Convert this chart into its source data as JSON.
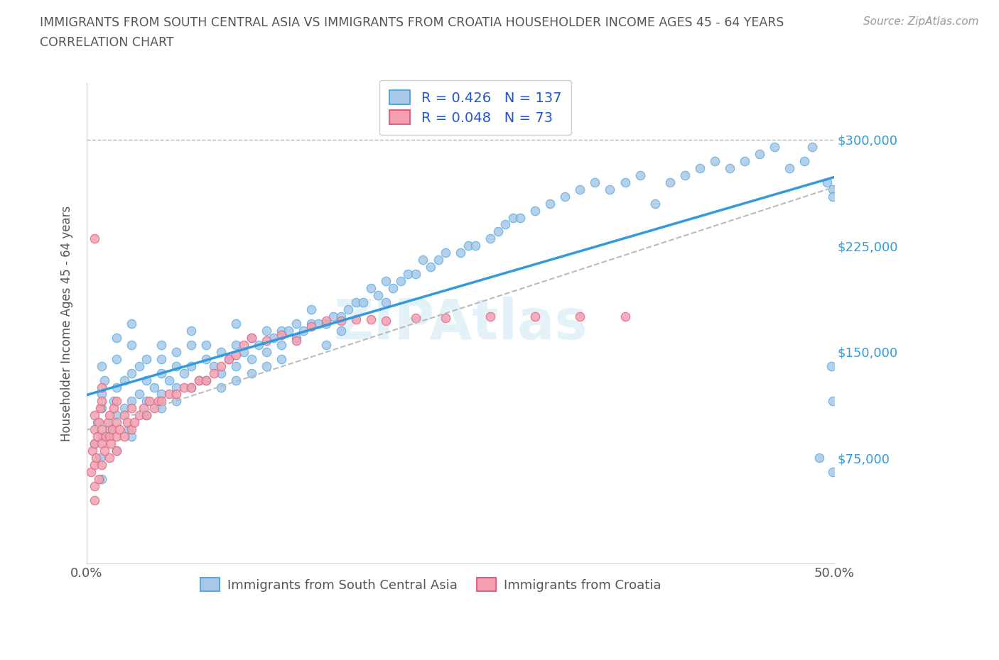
{
  "title_line1": "IMMIGRANTS FROM SOUTH CENTRAL ASIA VS IMMIGRANTS FROM CROATIA HOUSEHOLDER INCOME AGES 45 - 64 YEARS",
  "title_line2": "CORRELATION CHART",
  "source_text": "Source: ZipAtlas.com",
  "ylabel": "Householder Income Ages 45 - 64 years",
  "xlim": [
    0.0,
    0.5
  ],
  "ylim": [
    0,
    340000
  ],
  "ytick_values": [
    75000,
    150000,
    225000,
    300000
  ],
  "ytick_labels": [
    "$75,000",
    "$150,000",
    "$225,000",
    "$300,000"
  ],
  "r_asia": 0.426,
  "n_asia": 137,
  "r_croatia": 0.048,
  "n_croatia": 73,
  "color_asia": "#a8c8e8",
  "color_asia_edge": "#5aaadd",
  "color_croatia": "#f4a0b0",
  "color_croatia_edge": "#e06080",
  "color_asia_line": "#3399dd",
  "color_croatia_line": "#bbbbbb",
  "legend_label_asia": "Immigrants from South Central Asia",
  "legend_label_croatia": "Immigrants from Croatia",
  "watermark": "ZIPAtlas",
  "scatter_asia_x": [
    0.005,
    0.007,
    0.009,
    0.01,
    0.01,
    0.01,
    0.01,
    0.01,
    0.012,
    0.015,
    0.018,
    0.02,
    0.02,
    0.02,
    0.02,
    0.02,
    0.025,
    0.025,
    0.028,
    0.03,
    0.03,
    0.03,
    0.03,
    0.03,
    0.035,
    0.035,
    0.04,
    0.04,
    0.04,
    0.04,
    0.045,
    0.05,
    0.05,
    0.05,
    0.05,
    0.05,
    0.055,
    0.06,
    0.06,
    0.06,
    0.06,
    0.065,
    0.07,
    0.07,
    0.07,
    0.07,
    0.075,
    0.08,
    0.08,
    0.08,
    0.085,
    0.09,
    0.09,
    0.09,
    0.095,
    0.1,
    0.1,
    0.1,
    0.1,
    0.105,
    0.11,
    0.11,
    0.11,
    0.115,
    0.12,
    0.12,
    0.12,
    0.125,
    0.13,
    0.13,
    0.13,
    0.135,
    0.14,
    0.14,
    0.145,
    0.15,
    0.15,
    0.155,
    0.16,
    0.16,
    0.165,
    0.17,
    0.17,
    0.175,
    0.18,
    0.185,
    0.19,
    0.195,
    0.2,
    0.2,
    0.205,
    0.21,
    0.215,
    0.22,
    0.225,
    0.23,
    0.235,
    0.24,
    0.25,
    0.255,
    0.26,
    0.27,
    0.275,
    0.28,
    0.285,
    0.29,
    0.3,
    0.31,
    0.32,
    0.33,
    0.34,
    0.35,
    0.36,
    0.37,
    0.38,
    0.39,
    0.4,
    0.41,
    0.42,
    0.43,
    0.44,
    0.45,
    0.46,
    0.47,
    0.48,
    0.485,
    0.49,
    0.495,
    0.498,
    0.499,
    0.499,
    0.499,
    0.499
  ],
  "scatter_asia_y": [
    85000,
    100000,
    75000,
    110000,
    120000,
    140000,
    90000,
    60000,
    130000,
    95000,
    115000,
    105000,
    125000,
    145000,
    80000,
    160000,
    110000,
    130000,
    95000,
    115000,
    135000,
    155000,
    90000,
    170000,
    120000,
    140000,
    115000,
    130000,
    145000,
    105000,
    125000,
    120000,
    135000,
    145000,
    110000,
    155000,
    130000,
    125000,
    140000,
    150000,
    115000,
    135000,
    125000,
    140000,
    155000,
    165000,
    130000,
    130000,
    145000,
    155000,
    140000,
    135000,
    150000,
    125000,
    145000,
    140000,
    155000,
    170000,
    130000,
    150000,
    145000,
    160000,
    135000,
    155000,
    150000,
    165000,
    140000,
    160000,
    155000,
    165000,
    145000,
    165000,
    160000,
    170000,
    165000,
    170000,
    180000,
    170000,
    170000,
    155000,
    175000,
    175000,
    165000,
    180000,
    185000,
    185000,
    195000,
    190000,
    185000,
    200000,
    195000,
    200000,
    205000,
    205000,
    215000,
    210000,
    215000,
    220000,
    220000,
    225000,
    225000,
    230000,
    235000,
    240000,
    245000,
    245000,
    250000,
    255000,
    260000,
    265000,
    270000,
    265000,
    270000,
    275000,
    255000,
    270000,
    275000,
    280000,
    285000,
    280000,
    285000,
    290000,
    295000,
    280000,
    285000,
    295000,
    75000,
    270000,
    140000,
    115000,
    265000,
    260000,
    65000,
    145000,
    295000,
    300000,
    290000
  ],
  "scatter_croatia_x": [
    0.003,
    0.004,
    0.005,
    0.005,
    0.005,
    0.005,
    0.005,
    0.005,
    0.006,
    0.007,
    0.008,
    0.008,
    0.009,
    0.01,
    0.01,
    0.01,
    0.01,
    0.01,
    0.012,
    0.013,
    0.014,
    0.015,
    0.015,
    0.015,
    0.016,
    0.017,
    0.018,
    0.02,
    0.02,
    0.02,
    0.02,
    0.022,
    0.025,
    0.025,
    0.027,
    0.03,
    0.03,
    0.032,
    0.035,
    0.038,
    0.04,
    0.042,
    0.045,
    0.048,
    0.05,
    0.055,
    0.06,
    0.065,
    0.07,
    0.075,
    0.08,
    0.085,
    0.09,
    0.095,
    0.1,
    0.105,
    0.11,
    0.12,
    0.13,
    0.14,
    0.15,
    0.16,
    0.17,
    0.18,
    0.19,
    0.2,
    0.22,
    0.24,
    0.27,
    0.3,
    0.33,
    0.36,
    0.005
  ],
  "scatter_croatia_y": [
    65000,
    80000,
    45000,
    55000,
    70000,
    85000,
    95000,
    105000,
    75000,
    90000,
    60000,
    100000,
    110000,
    70000,
    85000,
    95000,
    115000,
    125000,
    80000,
    90000,
    100000,
    75000,
    90000,
    105000,
    85000,
    95000,
    110000,
    80000,
    90000,
    100000,
    115000,
    95000,
    90000,
    105000,
    100000,
    95000,
    110000,
    100000,
    105000,
    110000,
    105000,
    115000,
    110000,
    115000,
    115000,
    120000,
    120000,
    125000,
    125000,
    130000,
    130000,
    135000,
    140000,
    145000,
    148000,
    155000,
    160000,
    158000,
    162000,
    158000,
    168000,
    172000,
    172000,
    173000,
    173000,
    172000,
    174000,
    174000,
    175000,
    175000,
    175000,
    175000,
    230000
  ]
}
